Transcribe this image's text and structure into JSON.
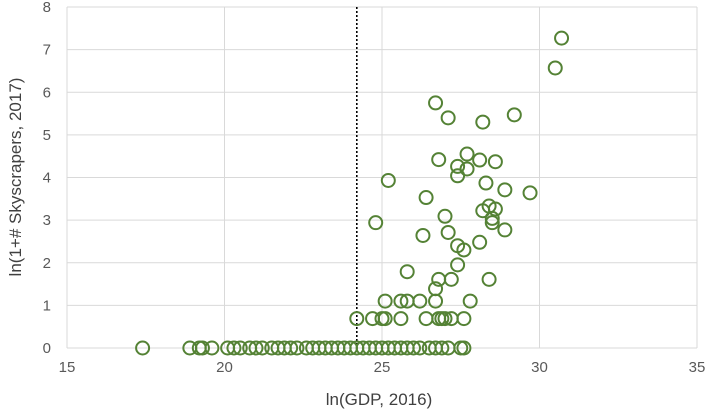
{
  "chart_data": {
    "type": "scatter",
    "xlabel": "ln(GDP, 2016)",
    "ylabel": "ln(1+# Skyscrapers, 2017)",
    "xlim": [
      15,
      35
    ],
    "ylim": [
      0,
      8
    ],
    "x_ticks": [
      15,
      20,
      25,
      30,
      35
    ],
    "y_ticks": [
      0,
      1,
      2,
      3,
      4,
      5,
      6,
      7,
      8
    ],
    "x_tick_labels": [
      "15",
      "20",
      "25",
      "30",
      "35"
    ],
    "y_tick_labels": [
      "0",
      "1",
      "2",
      "3",
      "4",
      "5",
      "6",
      "7",
      "8"
    ],
    "grid": true,
    "threshold_line_x": 24.2,
    "marker_color": "#548235",
    "grid_color": "#d9d9d9",
    "points": [
      [
        17.4,
        0
      ],
      [
        18.9,
        0
      ],
      [
        19.2,
        0
      ],
      [
        19.3,
        0
      ],
      [
        19.6,
        0
      ],
      [
        20.1,
        0
      ],
      [
        20.3,
        0
      ],
      [
        20.5,
        0
      ],
      [
        20.8,
        0
      ],
      [
        21.0,
        0
      ],
      [
        21.2,
        0
      ],
      [
        21.5,
        0
      ],
      [
        21.7,
        0
      ],
      [
        21.9,
        0
      ],
      [
        22.1,
        0
      ],
      [
        22.3,
        0
      ],
      [
        22.6,
        0
      ],
      [
        22.8,
        0
      ],
      [
        23.0,
        0
      ],
      [
        23.2,
        0
      ],
      [
        23.4,
        0
      ],
      [
        23.6,
        0
      ],
      [
        23.8,
        0
      ],
      [
        24.0,
        0
      ],
      [
        24.2,
        0
      ],
      [
        24.4,
        0
      ],
      [
        24.6,
        0
      ],
      [
        24.8,
        0
      ],
      [
        25.0,
        0
      ],
      [
        25.2,
        0
      ],
      [
        25.4,
        0
      ],
      [
        25.6,
        0
      ],
      [
        25.8,
        0
      ],
      [
        26.0,
        0
      ],
      [
        26.2,
        0
      ],
      [
        26.5,
        0
      ],
      [
        26.7,
        0
      ],
      [
        26.9,
        0
      ],
      [
        27.1,
        0
      ],
      [
        27.5,
        0
      ],
      [
        27.6,
        0
      ],
      [
        24.2,
        0.69
      ],
      [
        24.7,
        0.69
      ],
      [
        25.0,
        0.69
      ],
      [
        25.1,
        0.69
      ],
      [
        25.6,
        0.69
      ],
      [
        26.4,
        0.69
      ],
      [
        26.8,
        0.69
      ],
      [
        26.9,
        0.69
      ],
      [
        27.0,
        0.69
      ],
      [
        27.2,
        0.69
      ],
      [
        27.6,
        0.69
      ],
      [
        25.1,
        1.1
      ],
      [
        25.6,
        1.1
      ],
      [
        25.8,
        1.1
      ],
      [
        26.2,
        1.1
      ],
      [
        26.7,
        1.1
      ],
      [
        27.8,
        1.1
      ],
      [
        26.7,
        1.39
      ],
      [
        26.8,
        1.61
      ],
      [
        27.2,
        1.61
      ],
      [
        28.4,
        1.61
      ],
      [
        25.8,
        1.79
      ],
      [
        27.4,
        1.95
      ],
      [
        27.4,
        2.4
      ],
      [
        27.6,
        2.3
      ],
      [
        28.1,
        2.48
      ],
      [
        26.3,
        2.64
      ],
      [
        27.1,
        2.71
      ],
      [
        28.9,
        2.77
      ],
      [
        24.8,
        2.94
      ],
      [
        28.5,
        2.94
      ],
      [
        28.5,
        3.04
      ],
      [
        27.0,
        3.09
      ],
      [
        28.2,
        3.22
      ],
      [
        28.6,
        3.26
      ],
      [
        28.4,
        3.33
      ],
      [
        26.4,
        3.53
      ],
      [
        29.7,
        3.64
      ],
      [
        28.9,
        3.71
      ],
      [
        25.2,
        3.93
      ],
      [
        28.3,
        3.87
      ],
      [
        27.4,
        4.04
      ],
      [
        27.4,
        4.26
      ],
      [
        27.7,
        4.2
      ],
      [
        26.8,
        4.42
      ],
      [
        28.1,
        4.41
      ],
      [
        28.6,
        4.37
      ],
      [
        27.7,
        4.55
      ],
      [
        28.2,
        5.3
      ],
      [
        27.1,
        5.4
      ],
      [
        29.2,
        5.47
      ],
      [
        26.7,
        5.75
      ],
      [
        30.5,
        6.57
      ],
      [
        30.7,
        7.27
      ]
    ]
  }
}
